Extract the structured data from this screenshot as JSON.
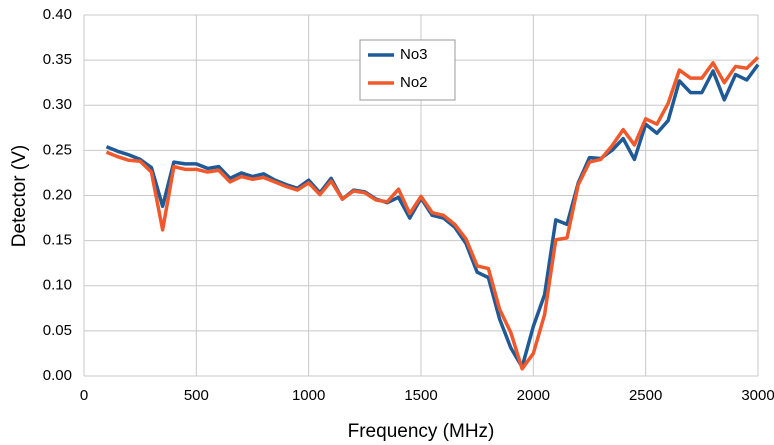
{
  "chart_data": {
    "type": "line",
    "x_label": "Frequency (MHz)",
    "y_label": "Detector  (V)",
    "x": [
      100,
      150,
      200,
      250,
      300,
      350,
      400,
      450,
      500,
      550,
      600,
      650,
      700,
      750,
      800,
      850,
      900,
      950,
      1000,
      1050,
      1100,
      1150,
      1200,
      1250,
      1300,
      1350,
      1400,
      1450,
      1500,
      1550,
      1600,
      1650,
      1700,
      1750,
      1800,
      1850,
      1900,
      1950,
      2000,
      2050,
      2100,
      2150,
      2200,
      2250,
      2300,
      2350,
      2400,
      2450,
      2500,
      2550,
      2600,
      2650,
      2700,
      2750,
      2800,
      2850,
      2900,
      2950,
      3000
    ],
    "series": [
      {
        "name": "No3",
        "color": "#1f5a96",
        "values": [
          0.254,
          0.249,
          0.245,
          0.24,
          0.231,
          0.188,
          0.237,
          0.235,
          0.235,
          0.23,
          0.232,
          0.219,
          0.225,
          0.221,
          0.224,
          0.217,
          0.212,
          0.208,
          0.217,
          0.203,
          0.219,
          0.196,
          0.206,
          0.204,
          0.196,
          0.192,
          0.198,
          0.175,
          0.197,
          0.178,
          0.175,
          0.165,
          0.147,
          0.115,
          0.109,
          0.063,
          0.031,
          0.01,
          0.055,
          0.09,
          0.173,
          0.168,
          0.214,
          0.242,
          0.241,
          0.25,
          0.263,
          0.24,
          0.279,
          0.269,
          0.283,
          0.327,
          0.314,
          0.314,
          0.338,
          0.306,
          0.334,
          0.328,
          0.345
        ]
      },
      {
        "name": "No2",
        "color": "#f0592b",
        "values": [
          0.248,
          0.243,
          0.239,
          0.238,
          0.226,
          0.162,
          0.232,
          0.229,
          0.229,
          0.226,
          0.228,
          0.215,
          0.221,
          0.218,
          0.22,
          0.215,
          0.21,
          0.206,
          0.214,
          0.201,
          0.216,
          0.196,
          0.205,
          0.203,
          0.195,
          0.193,
          0.207,
          0.18,
          0.199,
          0.181,
          0.178,
          0.168,
          0.152,
          0.122,
          0.119,
          0.074,
          0.048,
          0.008,
          0.025,
          0.068,
          0.151,
          0.153,
          0.212,
          0.237,
          0.24,
          0.255,
          0.273,
          0.256,
          0.285,
          0.279,
          0.302,
          0.339,
          0.33,
          0.33,
          0.347,
          0.325,
          0.343,
          0.341,
          0.353
        ]
      }
    ],
    "xlim": [
      0,
      3000
    ],
    "xticks": [
      0,
      500,
      1000,
      1500,
      2000,
      2500,
      3000
    ],
    "ylim": [
      0,
      0.4
    ],
    "yticks": [
      {
        "value": 0,
        "label": "0.00"
      },
      {
        "value": 0.05,
        "label": "0.05"
      },
      {
        "value": 0.1,
        "label": "0.10"
      },
      {
        "value": 0.15,
        "label": "0.15"
      },
      {
        "value": 0.2,
        "label": "0.20"
      },
      {
        "value": 0.25,
        "label": "0.25"
      },
      {
        "value": 0.3,
        "label": "0.30"
      },
      {
        "value": 0.35,
        "label": "0.35"
      },
      {
        "value": 0.4,
        "label": "0.40"
      }
    ],
    "grid": true
  }
}
